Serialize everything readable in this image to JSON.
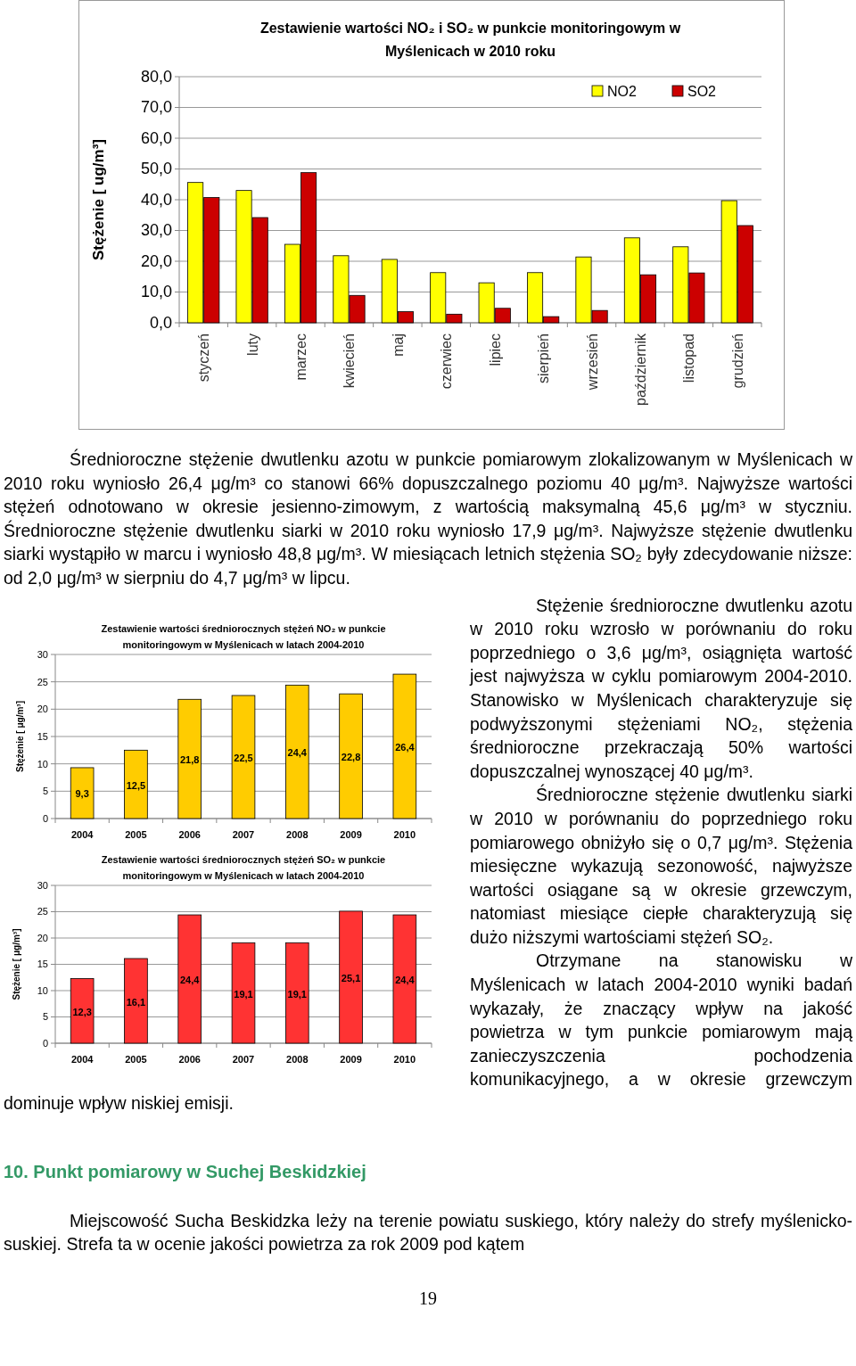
{
  "chart_data": [
    {
      "type": "bar",
      "title": "Zestawienie wartości NO₂ i SO₂ w punkcie monitoringowym w Myślenicach w 2010 roku",
      "ylabel": "Stężenie [ ug/m³]",
      "categories": [
        "styczeń",
        "luty",
        "marzec",
        "kwiecień",
        "maj",
        "czerwiec",
        "lipiec",
        "sierpień",
        "wrzesień",
        "październik",
        "listopad",
        "grudzień"
      ],
      "series": [
        {
          "name": "NO2",
          "color": "#ffff00",
          "values": [
            45.6,
            43.0,
            25.5,
            21.8,
            20.6,
            16.3,
            13.0,
            16.3,
            21.4,
            27.6,
            24.7,
            39.7
          ]
        },
        {
          "name": "SO2",
          "color": "#cc0000",
          "values": [
            40.7,
            34.2,
            48.8,
            8.9,
            3.6,
            2.8,
            4.7,
            2.0,
            4.0,
            15.6,
            16.2,
            31.6
          ]
        }
      ],
      "ylim": [
        0,
        80
      ],
      "yticks": [
        {
          "value": 0,
          "label": "0,0"
        },
        {
          "value": 10,
          "label": "10,0"
        },
        {
          "value": 20,
          "label": "20,0"
        },
        {
          "value": 30,
          "label": "30,0"
        },
        {
          "value": 40,
          "label": "40,0"
        },
        {
          "value": 50,
          "label": "50,0"
        },
        {
          "value": 60,
          "label": "60,0"
        },
        {
          "value": 70,
          "label": "70,0"
        },
        {
          "value": 80,
          "label": "80,0"
        }
      ],
      "grid": "y",
      "legend": "top right",
      "annotations": [
        "Średnioroczne stężenie dwutlenku azotu w punkcie pomiarowym zlokalizowanym w Myślenicach w 2010 roku wyniosło 26,4 μg/m³ co stanowi 66% dopuszczalnego poziomu 40 μg/m³. Najwyższe wartości stężeń odnotowano w okresie jesienno-zimowym, z wartością maksymalną 45,6 μg/m³ w styczniu. Średnioroczne stężenie dwutlenku siarki w 2010 roku wyniosło 17,9 μg/m³. Najwyższe stężenie dwutlenku siarki wystąpiło w marcu i wyniosło 48,8 μg/m³. W miesiącach letnich stężenia SO₂ były zdecydowanie niższe: od 2,0 μg/m³ w sierpniu do 4,7 μg/m³ w lipcu."
      ]
    },
    {
      "type": "bar",
      "title": "Zestawienie wartości średniorocznych stężeń NO₂ w punkcie monitoringowym w Myślenicach w latach 2004-2010",
      "ylabel": "Stężenie [ μg/m³]",
      "categories": [
        "2004",
        "2005",
        "2006",
        "2007",
        "2008",
        "2009",
        "2010"
      ],
      "series": [
        {
          "color": "#ffcc00",
          "values": [
            9.3,
            12.5,
            21.8,
            22.5,
            24.4,
            22.8,
            26.4
          ],
          "value_labels": [
            "9,3",
            "12,5",
            "21,8",
            "22,5",
            "24,4",
            "22,8",
            "26,4"
          ]
        }
      ],
      "ylim": [
        0,
        30
      ],
      "yticks": [
        0,
        5,
        10,
        15,
        20,
        25,
        30
      ],
      "grid": "y",
      "annotations": [
        "Stężenie średnioroczne dwutlenku azotu w 2010 roku wzrosło w porównaniu do roku poprzedniego o 3,6 μg/m³, osiągnięta wartość jest najwyższa w cyklu pomiarowym 2004-2010. Stanowisko w Myślenicach charakteryzuje się podwyższonymi stężeniami NO₂, stężenia średnioroczne przekraczają 50% wartości dopuszczalnej wynoszącej 40 μg/m³."
      ]
    },
    {
      "type": "bar",
      "title": "Zestawienie wartości średniorocznych stężeń SO₂ w punkcie monitoringowym w Myślenicach w latach 2004-2010",
      "ylabel": "Stężenie [ μg/m³]",
      "categories": [
        "2004",
        "2005",
        "2006",
        "2007",
        "2008",
        "2009",
        "2010"
      ],
      "series": [
        {
          "color": "#ff3333",
          "values": [
            12.3,
            16.1,
            24.4,
            19.1,
            19.1,
            25.1,
            24.4
          ],
          "value_labels": [
            "12,3",
            "16,1",
            "24,4",
            "19,1",
            "19,1",
            "25,1",
            "24,4"
          ]
        }
      ],
      "ylim": [
        0,
        30
      ],
      "yticks": [
        0,
        5,
        10,
        15,
        20,
        25,
        30
      ],
      "grid": "y",
      "annotations": [
        "Średnioroczne stężenie dwutlenku siarki w 2010 w porównaniu do poprzedniego roku pomiarowego obniżyło się o 0,7 μg/m³. Stężenia miesięczne wykazują sezonowość, najwyższe wartości osiągane są w okresie grzewczym, natomiast miesiące ciepłe charakteryzują się dużo niższymi wartościami stężeń SO₂.",
        "Otrzymane na stanowisku w Myślenicach w latach 2004-2010 wyniki badań wykazały, że znaczący wpływ na jakość powietrza w tym punkcie pomiarowym mają zanieczyszczenia pochodzenia komunikacyjnego, a w okresie grzewczym dominuje wpływ niskiej emisji.",
        "10. Punkt pomiarowy w Suchej Beskidzkiej",
        "Miejscowość Sucha Beskidzka leży na terenie powiatu suskiego, który należy do strefy myślenicko-suskiej. Strefa ta w ocenie jakości powietrza za rok 2009 pod kątem",
        "19"
      ]
    }
  ]
}
